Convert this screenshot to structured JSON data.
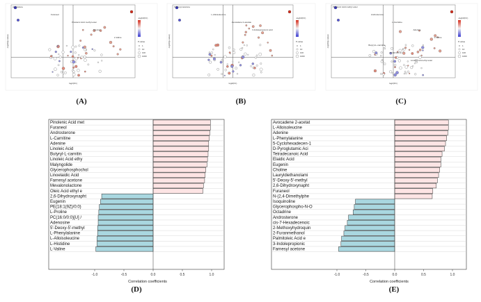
{
  "panel_letters": [
    "(A)",
    "(B)",
    "(C)",
    "(D)",
    "(E)"
  ],
  "colors": {
    "positive": "#fde4e4",
    "negative": "#a9d7e0",
    "bar_stroke": "#333333",
    "vol_high": "#d7301f",
    "vol_low": "#3b3bd1"
  },
  "chart_data": [
    {
      "panel": "A",
      "type": "scatter",
      "xlabel": "log2(FC)",
      "ylabel": "-log10(p-value)",
      "legend_title": "-log10(FC)",
      "legend2_title": "P-value",
      "legend2_entries": [
        "1",
        "10",
        "100",
        "1000"
      ],
      "labels": [
        "Avocadene",
        "Furaneol",
        "Pinolenic Acid methyl ester",
        "Adenine",
        "L-Valine"
      ]
    },
    {
      "panel": "B",
      "type": "scatter",
      "xlabel": "log2(FC)",
      "ylabel": "-log10(p-value)",
      "legend_title": "-log10(FC)",
      "legend2_title": "P-value",
      "legend2_entries": [
        "1",
        "10",
        "100",
        "1000"
      ],
      "labels": [
        "Farnesyl acetone",
        "L-Alloisoleucine",
        "Avocadene 2-acetate",
        "3-Indolepropionic acid"
      ]
    },
    {
      "panel": "C",
      "type": "scatter",
      "xlabel": "log2(FC)",
      "ylabel": "-log10(p-value)",
      "legend_title": "-log10(FC)",
      "legend2_title": "P-value",
      "legend2_entries": [
        "1",
        "10",
        "100",
        "1000"
      ],
      "labels": [
        "Pinolenic Acid methyl ester",
        "Androsterone",
        "L-Carnitine",
        "Adenine",
        "L-Valine",
        "Butyryl-L-carnitine",
        "PC(16:0/0:0)",
        "Linoleic Acid ethyl ester"
      ]
    },
    {
      "panel": "D",
      "type": "bar",
      "orientation": "horizontal",
      "xlabel": "Correlation coefficients",
      "xlim": [
        -1.0,
        1.0
      ],
      "xticks": [
        "-1.0",
        "-0.5",
        "0.0",
        "0.5",
        "1.0"
      ],
      "categories": [
        "Pinolenic Acid met",
        "Furaneol",
        "Androsterone",
        "L-Carnitine",
        "Adenine",
        "Linoleic Acid",
        "Butyryl-L-carnitin",
        "Linoleic Acid ethy",
        "Malyngolide",
        "Glycerophosphochol",
        "Linoelaidic Acid",
        "Farnesyl acetone",
        "Mevalonolactone",
        "Oleic Acid ethyl e",
        "2,6-Dihydroxynapht",
        "Eugenin",
        "PE(18:1(9Z)/0:0)",
        "L-Proline",
        "PC(16:0/0:0)[U] /",
        "Adenosine",
        "5'-Deoxy-5'-methyl",
        "L-Phenylalanine",
        "L-Alloisoleucine",
        "L-Histidine",
        "L-Valine"
      ],
      "values": [
        0.98,
        0.98,
        0.97,
        0.96,
        0.95,
        0.95,
        0.94,
        0.93,
        0.92,
        0.9,
        0.89,
        0.88,
        0.86,
        0.85,
        -0.88,
        -0.9,
        -0.92,
        -0.93,
        -0.94,
        -0.94,
        -0.95,
        -0.95,
        -0.96,
        -0.96,
        -0.98
      ]
    },
    {
      "panel": "E",
      "type": "bar",
      "orientation": "horizontal",
      "xlabel": "Correlation coefficients",
      "xlim": [
        -1.0,
        1.0
      ],
      "xticks": [
        "-1.0",
        "-0.5",
        "0.0",
        "0.5",
        "1.0"
      ],
      "categories": [
        "Avocadene 2-acetat",
        "L-Alloisoleucine",
        "Adenine",
        "L-Phenylalanine",
        "5-Cyclohexadecen-1",
        "D-Pyroglutamic Aci",
        "Tetradecanoic Acid",
        "Elaidic Acid",
        "Eugenin",
        "Choline",
        "Lauryldiethanolami",
        "5'-Deoxy-5'-methyl",
        "2,6-Dihydroxynapht",
        "Furaneol",
        "N-(2,4-Dimethylphe",
        "Isoquinoline",
        "Glycerophospho-N-O",
        "Octadrine",
        "Androsterone",
        "cis-7-Hexadecenoic",
        "2-Methoxyhydroquin",
        "2-Furanmethanol",
        "Palmitoleic Acid e",
        "3-Indolepropionic",
        "Farnesyl acetone"
      ],
      "values": [
        0.93,
        0.93,
        0.92,
        0.9,
        0.88,
        0.86,
        0.82,
        0.8,
        0.8,
        0.78,
        0.76,
        0.74,
        0.72,
        0.66,
        0.65,
        -0.68,
        -0.7,
        -0.72,
        -0.8,
        -0.82,
        -0.86,
        -0.88,
        -0.92,
        -0.93,
        -0.97
      ]
    }
  ]
}
